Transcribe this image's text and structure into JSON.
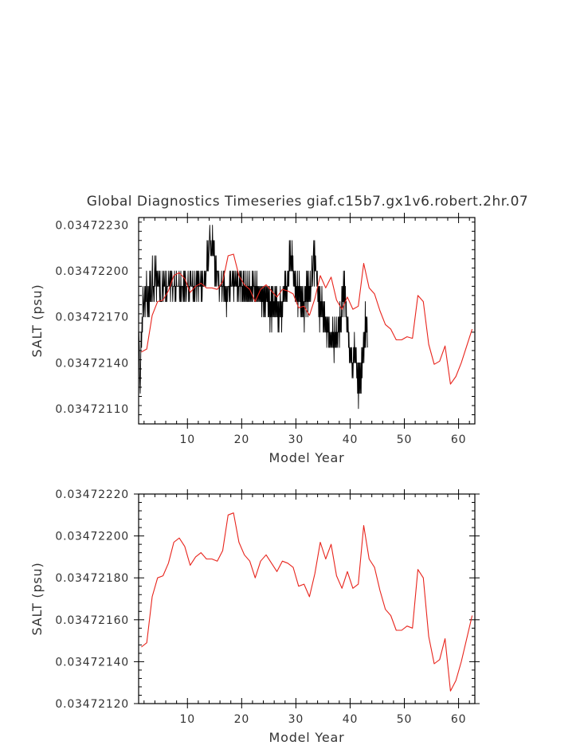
{
  "figure": {
    "title": "Global Diagnostics Timeseries giaf.c15b7.gx1v6.robert.2hr.07"
  },
  "chart_data": [
    {
      "type": "line",
      "title": "Global Diagnostics Timeseries giaf.c15b7.gx1v6.robert.2hr.07",
      "xlabel": "Model Year",
      "ylabel": "SALT (psu)",
      "xlim": [
        1,
        63
      ],
      "ylim": [
        0.034721,
        0.03472235
      ],
      "xticks": [
        10,
        20,
        30,
        40,
        50,
        60
      ],
      "xtick_labels": [
        "10",
        "20",
        "30",
        "40",
        "50",
        "60"
      ],
      "yticks": [
        0.0347211,
        0.0347214,
        0.0347217,
        0.034722,
        0.0347223
      ],
      "ytick_labels": [
        "0.03472110",
        "0.03472140",
        "0.03472170",
        "0.03472200",
        "0.03472230"
      ],
      "grid": false,
      "series": [
        {
          "color": "#000000",
          "x_start": 1.0417,
          "x_step": 0.083333,
          "values": [
            0.0347216,
            0.0347215,
            0.0347213,
            0.0347212,
            0.0347214,
            0.0347216,
            0.0347215,
            0.0347217,
            0.0347216,
            0.0347219,
            0.0347218,
            0.0347217,
            0.0347218,
            0.0347219,
            0.0347217,
            0.0347219,
            0.0347218,
            0.034722,
            0.0347218,
            0.0347217,
            0.0347219,
            0.0347217,
            0.0347219,
            0.0347217,
            0.034722,
            0.0347218,
            0.034722,
            0.0347218,
            0.0347218,
            0.0347219,
            0.0347221,
            0.0347218,
            0.0347219,
            0.0347219,
            0.0347218,
            0.0347221,
            0.0347219,
            0.034722,
            0.0347221,
            0.0347218,
            0.034722,
            0.0347219,
            0.034722,
            0.0347219,
            0.0347219,
            0.034722,
            0.0347218,
            0.034722,
            0.0347218,
            0.0347218,
            0.0347218,
            0.0347218,
            0.034722,
            0.0347219,
            0.0347218,
            0.034722,
            0.0347219,
            0.0347219,
            0.034722,
            0.0347218,
            0.0347218,
            0.034722,
            0.0347218,
            0.0347219,
            0.0347219,
            0.0347219,
            0.034722,
            0.0347219,
            0.0347219,
            0.034722,
            0.0347218,
            0.034722,
            0.0347219,
            0.034722,
            0.0347219,
            0.0347218,
            0.0347219,
            0.0347219,
            0.0347219,
            0.034722,
            0.0347218,
            0.0347219,
            0.0347218,
            0.034722,
            0.0347219,
            0.0347219,
            0.0347219,
            0.0347219,
            0.0347219,
            0.034722,
            0.0347218,
            0.0347219,
            0.0347218,
            0.034722,
            0.0347218,
            0.0347219,
            0.0347219,
            0.0347219,
            0.0347218,
            0.034722,
            0.0347218,
            0.034722,
            0.0347218,
            0.034722,
            0.0347219,
            0.0347218,
            0.0347219,
            0.0347219,
            0.0347219,
            0.034722,
            0.0347218,
            0.0347219,
            0.0347218,
            0.034722,
            0.0347219,
            0.034722,
            0.0347219,
            0.0347219,
            0.0347219,
            0.034722,
            0.0347218,
            0.0347219,
            0.0347218,
            0.034722,
            0.0347218,
            0.0347219,
            0.0347219,
            0.034722,
            0.0347218,
            0.034722,
            0.0347219,
            0.034722,
            0.0347218,
            0.034722,
            0.0347219,
            0.0347219,
            0.0347219,
            0.034722,
            0.0347218,
            0.034722,
            0.0347218,
            0.034722,
            0.0347219,
            0.0347219,
            0.0347219,
            0.034722,
            0.0347219,
            0.034722,
            0.0347219,
            0.034722,
            0.034722,
            0.0347222,
            0.034722,
            0.0347222,
            0.034722,
            0.0347221,
            0.0347222,
            0.0347223,
            0.0347222,
            0.0347221,
            0.0347222,
            0.0347221,
            0.0347221,
            0.0347223,
            0.0347221,
            0.0347222,
            0.0347221,
            0.0347222,
            0.0347219,
            0.0347221,
            0.0347219,
            0.0347221,
            0.0347219,
            0.034722,
            0.034722,
            0.034722,
            0.0347219,
            0.034722,
            0.0347218,
            0.0347219,
            0.0347219,
            0.0347219,
            0.0347219,
            0.034722,
            0.0347218,
            0.0347219,
            0.0347219,
            0.034722,
            0.0347218,
            0.034722,
            0.0347218,
            0.0347219,
            0.0347218,
            0.0347219,
            0.0347217,
            0.0347219,
            0.0347218,
            0.0347219,
            0.0347219,
            0.0347219,
            0.0347218,
            0.034722,
            0.0347218,
            0.034722,
            0.0347219,
            0.0347219,
            0.0347219,
            0.034722,
            0.0347219,
            0.034722,
            0.0347218,
            0.034722,
            0.0347219,
            0.0347219,
            0.034722,
            0.0347219,
            0.0347219,
            0.034722,
            0.0347218,
            0.034722,
            0.0347218,
            0.0347219,
            0.0347219,
            0.034722,
            0.0347218,
            0.034722,
            0.0347219,
            0.034722,
            0.0347218,
            0.0347219,
            0.0347218,
            0.034722,
            0.0347218,
            0.034722,
            0.0347218,
            0.0347219,
            0.0347218,
            0.034722,
            0.0347218,
            0.0347219,
            0.0347218,
            0.034722,
            0.0347218,
            0.0347219,
            0.0347218,
            0.034722,
            0.0347218,
            0.0347219,
            0.0347218,
            0.0347219,
            0.0347218,
            0.034722,
            0.0347218,
            0.034722,
            0.0347219,
            0.0347219,
            0.0347218,
            0.034722,
            0.0347218,
            0.0347219,
            0.0347218,
            0.034722,
            0.0347218,
            0.0347219,
            0.0347218,
            0.0347219,
            0.0347218,
            0.0347219,
            0.0347218,
            0.0347219,
            0.0347218,
            0.0347219,
            0.0347217,
            0.0347219,
            0.0347218,
            0.0347219,
            0.0347217,
            0.0347219,
            0.0347217,
            0.0347219,
            0.0347217,
            0.0347219,
            0.0347218,
            0.0347219,
            0.0347218,
            0.0347219,
            0.0347217,
            0.0347219,
            0.0347217,
            0.0347219,
            0.0347216,
            0.0347218,
            0.0347217,
            0.0347219,
            0.0347216,
            0.0347219,
            0.0347217,
            0.0347219,
            0.0347217,
            0.0347218,
            0.0347217,
            0.0347219,
            0.0347217,
            0.0347219,
            0.0347217,
            0.0347219,
            0.0347217,
            0.0347218,
            0.0347216,
            0.0347218,
            0.0347216,
            0.0347218,
            0.0347217,
            0.0347219,
            0.0347217,
            0.0347218,
            0.0347216,
            0.0347218,
            0.0347217,
            0.0347219,
            0.0347218,
            0.0347219,
            0.0347218,
            0.034722,
            0.0347218,
            0.034722,
            0.0347218,
            0.0347219,
            0.0347218,
            0.034722,
            0.0347219,
            0.034722,
            0.0347219,
            0.0347222,
            0.034722,
            0.0347222,
            0.034722,
            0.0347221,
            0.034722,
            0.0347222,
            0.034722,
            0.0347221,
            0.0347219,
            0.034722,
            0.0347219,
            0.034722,
            0.0347218,
            0.034722,
            0.0347218,
            0.0347219,
            0.0347218,
            0.034722,
            0.0347217,
            0.0347219,
            0.0347218,
            0.034722,
            0.0347218,
            0.0347219,
            0.0347217,
            0.0347219,
            0.0347217,
            0.0347219,
            0.0347217,
            0.0347219,
            0.0347217,
            0.0347218,
            0.0347216,
            0.0347219,
            0.0347218,
            0.0347219,
            0.0347217,
            0.034722,
            0.0347218,
            0.034722,
            0.0347217,
            0.034722,
            0.0347218,
            0.0347219,
            0.0347218,
            0.034722,
            0.0347218,
            0.0347219,
            0.0347219,
            0.0347221,
            0.0347219,
            0.034722,
            0.0347221,
            0.0347222,
            0.0347219,
            0.0347222,
            0.034722,
            0.0347221,
            0.034722,
            0.034722,
            0.0347219,
            0.034722,
            0.0347218,
            0.0347219,
            0.0347217,
            0.0347219,
            0.0347216,
            0.0347219,
            0.0347217,
            0.0347218,
            0.0347217,
            0.0347219,
            0.0347217,
            0.0347218,
            0.0347216,
            0.0347218,
            0.0347216,
            0.0347218,
            0.0347216,
            0.0347217,
            0.0347216,
            0.0347217,
            0.0347215,
            0.0347217,
            0.0347216,
            0.0347217,
            0.0347215,
            0.0347217,
            0.0347215,
            0.0347216,
            0.0347215,
            0.0347216,
            0.0347215,
            0.0347216,
            0.0347215,
            0.0347217,
            0.0347215,
            0.0347216,
            0.0347214,
            0.0347217,
            0.0347215,
            0.0347216,
            0.0347215,
            0.0347217,
            0.0347215,
            0.0347216,
            0.0347215,
            0.0347217,
            0.0347216,
            0.0347217,
            0.0347215,
            0.0347218,
            0.0347216,
            0.0347217,
            0.0347216,
            0.0347219,
            0.0347217,
            0.0347219,
            0.0347218,
            0.034722,
            0.0347217,
            0.034722,
            0.0347218,
            0.0347219,
            0.0347217,
            0.0347218,
            0.0347216,
            0.0347217,
            0.0347216,
            0.0347217,
            0.0347215,
            0.0347216,
            0.0347214,
            0.0347215,
            0.0347214,
            0.0347215,
            0.0347214,
            0.0347215,
            0.0347213,
            0.0347214,
            0.0347213,
            0.0347215,
            0.0347214,
            0.0347216,
            0.0347214,
            0.0347215,
            0.0347214,
            0.0347215,
            0.0347213,
            0.0347214,
            0.0347212,
            0.0347214,
            0.0347211,
            0.0347214,
            0.0347212,
            0.0347214,
            0.0347212,
            0.0347214,
            0.0347212,
            0.0347215,
            0.0347213,
            0.0347215,
            0.0347214,
            0.0347216,
            0.0347214,
            0.0347216,
            0.0347215,
            0.0347218,
            0.0347215,
            0.0347217,
            0.0347216,
            0.0347217,
            0.0347215
          ]
        },
        {
          "color": "#e8241c",
          "x_start": 1.5,
          "x_step": 1,
          "values": [
            0.03472147,
            0.03472149,
            0.03472171,
            0.0347218,
            0.03472181,
            0.03472187,
            0.03472197,
            0.03472199,
            0.03472195,
            0.03472186,
            0.0347219,
            0.03472192,
            0.03472189,
            0.03472189,
            0.03472188,
            0.03472193,
            0.0347221,
            0.03472211,
            0.03472197,
            0.03472191,
            0.03472188,
            0.0347218,
            0.03472188,
            0.03472191,
            0.03472187,
            0.03472183,
            0.03472188,
            0.03472187,
            0.03472185,
            0.03472176,
            0.03472177,
            0.03472171,
            0.03472182,
            0.03472197,
            0.03472189,
            0.03472196,
            0.03472181,
            0.03472175,
            0.03472183,
            0.03472175,
            0.03472177,
            0.03472205,
            0.03472189,
            0.03472185,
            0.03472174,
            0.03472165,
            0.03472162,
            0.03472155,
            0.03472155,
            0.03472157,
            0.03472156,
            0.03472184,
            0.0347218,
            0.03472152,
            0.03472139,
            0.03472141,
            0.03472151,
            0.03472126,
            0.03472131,
            0.0347214,
            0.03472151,
            0.03472162
          ]
        }
      ]
    },
    {
      "type": "line",
      "title": "",
      "xlabel": "Model Year",
      "ylabel": "SALT (psu)",
      "xlim": [
        1,
        63
      ],
      "ylim": [
        0.0347212,
        0.0347222
      ],
      "xticks": [
        10,
        20,
        30,
        40,
        50,
        60
      ],
      "xtick_labels": [
        "10",
        "20",
        "30",
        "40",
        "50",
        "60"
      ],
      "yticks": [
        0.0347212,
        0.0347214,
        0.0347216,
        0.0347218,
        0.034722,
        0.0347222
      ],
      "ytick_labels": [
        "0.03472120",
        "0.03472140",
        "0.03472160",
        "0.03472180",
        "0.03472200",
        "0.03472220"
      ],
      "grid": false,
      "series": [
        {
          "color": "#e8241c",
          "x_start": 1.5,
          "x_step": 1,
          "values": [
            0.03472147,
            0.03472149,
            0.03472171,
            0.0347218,
            0.03472181,
            0.03472187,
            0.03472197,
            0.03472199,
            0.03472195,
            0.03472186,
            0.0347219,
            0.03472192,
            0.03472189,
            0.03472189,
            0.03472188,
            0.03472193,
            0.0347221,
            0.03472211,
            0.03472197,
            0.03472191,
            0.03472188,
            0.0347218,
            0.03472188,
            0.03472191,
            0.03472187,
            0.03472183,
            0.03472188,
            0.03472187,
            0.03472185,
            0.03472176,
            0.03472177,
            0.03472171,
            0.03472182,
            0.03472197,
            0.03472189,
            0.03472196,
            0.03472181,
            0.03472175,
            0.03472183,
            0.03472175,
            0.03472177,
            0.03472205,
            0.03472189,
            0.03472185,
            0.03472174,
            0.03472165,
            0.03472162,
            0.03472155,
            0.03472155,
            0.03472157,
            0.03472156,
            0.03472184,
            0.0347218,
            0.03472152,
            0.03472139,
            0.03472141,
            0.03472151,
            0.03472126,
            0.03472131,
            0.0347214,
            0.03472151,
            0.03472162
          ]
        }
      ]
    }
  ]
}
